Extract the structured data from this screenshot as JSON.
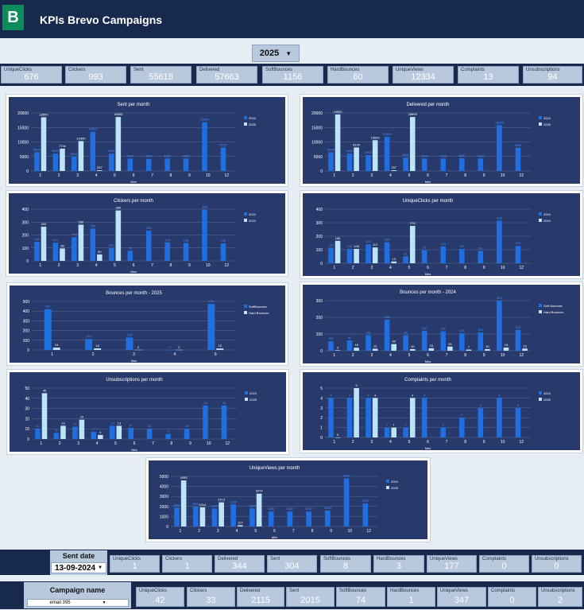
{
  "app": {
    "title": "KPIs Brevo Campaigns",
    "logo_letter": "B"
  },
  "year_filter": {
    "value": "2025"
  },
  "kpis_top": [
    {
      "label": "UniqueClicks",
      "value": "676"
    },
    {
      "label": "Clickers",
      "value": "993"
    },
    {
      "label": "Sent",
      "value": "55618"
    },
    {
      "label": "Delivered",
      "value": "57663"
    },
    {
      "label": "SoftBounces",
      "value": "1156"
    },
    {
      "label": "HardBounces",
      "value": "60"
    },
    {
      "label": "UniqueViews",
      "value": "12334"
    },
    {
      "label": "Complaints",
      "value": "13"
    },
    {
      "label": "Unsubscriptions",
      "value": "94"
    }
  ],
  "sent_date": {
    "label": "Sent date",
    "value": "13-09-2024"
  },
  "kpis_date": [
    {
      "label": "UniqueClicks",
      "value": "1"
    },
    {
      "label": "Clickers",
      "value": "1"
    },
    {
      "label": "Delivered",
      "value": "344"
    },
    {
      "label": "Sent",
      "value": "304"
    },
    {
      "label": "SoftBounces",
      "value": "8"
    },
    {
      "label": "HardBounces",
      "value": "3"
    },
    {
      "label": "UniqueViews",
      "value": "177"
    },
    {
      "label": "Complaints",
      "value": "0"
    },
    {
      "label": "Unsubscriptions",
      "value": "0"
    }
  ],
  "campaign": {
    "label": "Campaign name",
    "value": "email 395"
  },
  "kpis_campaign": [
    {
      "label": "UniqueClicks",
      "value": "42"
    },
    {
      "label": "Clickers",
      "value": "33"
    },
    {
      "label": "Delivered",
      "value": "2115"
    },
    {
      "label": "Sent",
      "value": "2015"
    },
    {
      "label": "SoftBounces",
      "value": "74"
    },
    {
      "label": "HardBounces",
      "value": "1"
    },
    {
      "label": "UniqueViews",
      "value": "347"
    },
    {
      "label": "Complaints",
      "value": "0"
    },
    {
      "label": "Unsubscriptions",
      "value": "2"
    }
  ],
  "colors": {
    "s1": "#1f6fe0",
    "s2": "#bde3f8",
    "grid": "#5b6d96",
    "text": "#ffffff"
  },
  "chart_data": [
    {
      "id": "sent",
      "type": "bar",
      "title": "Sent per month",
      "xlabel": "Mes",
      "categories": [
        "1",
        "2",
        "3",
        "4",
        "5",
        "6",
        "7",
        "8",
        "9",
        "10",
        "12"
      ],
      "ylim": [
        0,
        20000
      ],
      "yticks": [
        0,
        5000,
        10000,
        15000,
        20000
      ],
      "series": [
        {
          "name": "2024",
          "values": [
            6500,
            6000,
            5000,
            13500,
            6000,
            4300,
            4200,
            4300,
            4300,
            16800,
            8100
          ]
        },
        {
          "name": "2025",
          "values": [
            18500,
            7700,
            10300,
            257,
            18600,
            null,
            null,
            null,
            null,
            null,
            null
          ]
        }
      ]
    },
    {
      "id": "delivered",
      "type": "bar",
      "title": "Delivered per month",
      "xlabel": "Mes",
      "categories": [
        "1",
        "2",
        "3",
        "4",
        "5",
        "6",
        "7",
        "8",
        "9",
        "10",
        "12"
      ],
      "ylim": [
        0,
        20000
      ],
      "yticks": [
        0,
        5000,
        10000,
        15000,
        20000
      ],
      "series": [
        {
          "name": "2024",
          "values": [
            6500,
            6000,
            5500,
            11800,
            4600,
            4300,
            4300,
            4400,
            4300,
            15800,
            8000
          ]
        },
        {
          "name": "2025",
          "values": [
            19500,
            8100,
            10600,
            257,
            18600,
            null,
            null,
            null,
            null,
            null,
            null
          ]
        }
      ]
    },
    {
      "id": "clickers",
      "type": "bar",
      "title": "Clickers per month",
      "xlabel": "Mes",
      "categories": [
        "1",
        "2",
        "3",
        "4",
        "5",
        "6",
        "7",
        "8",
        "9",
        "10",
        "12"
      ],
      "ylim": [
        0,
        400
      ],
      "yticks": [
        0,
        100,
        200,
        300,
        400
      ],
      "series": [
        {
          "name": "2024",
          "values": [
            148,
            141,
            184,
            250,
            101,
            78,
            233,
            143,
            138,
            396,
            135
          ]
        },
        {
          "name": "2024",
          "values": [
            264,
            96,
            280,
            50,
            390,
            null,
            null,
            null,
            null,
            null,
            null
          ]
        }
      ]
    },
    {
      "id": "uniqueclicks",
      "type": "bar",
      "title": "UniqueClicks per month",
      "xlabel": "Mes",
      "categories": [
        "1",
        "2",
        "3",
        "4",
        "5",
        "6",
        "7",
        "8",
        "9",
        "10",
        "12"
      ],
      "ylim": [
        0,
        400
      ],
      "yticks": [
        0,
        100,
        200,
        300,
        400
      ],
      "series": [
        {
          "name": "2024",
          "values": [
            115,
            106,
            140,
            155,
            51,
            96,
            125,
            105,
            90,
            315,
            128
          ]
        },
        {
          "name": "2024",
          "values": [
            166,
            106,
            117,
            13,
            276,
            null,
            null,
            null,
            null,
            null,
            null
          ]
        }
      ]
    },
    {
      "id": "bounces2025",
      "type": "bar",
      "title": "Bounces per month - 2025",
      "xlabel": "Mes",
      "categories": [
        "1",
        "2",
        "3",
        "4",
        "6"
      ],
      "ylim": [
        0,
        500
      ],
      "yticks": [
        0,
        100,
        200,
        300,
        400,
        500
      ],
      "series": [
        {
          "name": "SoftBounces",
          "values": [
            421,
            113,
            128,
            1,
            475
          ]
        },
        {
          "name": "Hard Bounces",
          "values": [
            24,
            16,
            2,
            2,
            15
          ]
        }
      ]
    },
    {
      "id": "bounces2024",
      "type": "bar",
      "title": "Bounces per month - 2024",
      "xlabel": "Mes",
      "categories": [
        "1",
        "2",
        "3",
        "4",
        "5",
        "6",
        "7",
        "8",
        "9",
        "10",
        "12"
      ],
      "ylim": [
        0,
        300
      ],
      "yticks": [
        0,
        100,
        200,
        300
      ],
      "series": [
        {
          "name": "Soft Bounces",
          "values": [
            56,
            62,
            93,
            186,
            93,
            120,
            116,
            105,
            110,
            300,
            125
          ]
        },
        {
          "name": "Hard Bounces",
          "values": [
            3,
            18,
            12,
            40,
            10,
            15,
            25,
            7,
            10,
            19,
            13
          ]
        }
      ]
    },
    {
      "id": "unsubs",
      "type": "bar",
      "title": "Unsubscriptions per month",
      "xlabel": "Mes",
      "categories": [
        "1",
        "2",
        "3",
        "4",
        "5",
        "6",
        "7",
        "8",
        "9",
        "10",
        "12"
      ],
      "ylim": [
        0,
        50
      ],
      "yticks": [
        0,
        10,
        20,
        30,
        40,
        50
      ],
      "series": [
        {
          "name": "2024",
          "values": [
            10,
            6,
            12,
            7,
            13,
            11,
            10,
            5,
            10,
            33,
            33
          ]
        },
        {
          "name": "2025",
          "values": [
            45,
            13,
            19,
            4,
            13,
            null,
            null,
            null,
            null,
            null,
            null
          ]
        }
      ]
    },
    {
      "id": "complaints",
      "type": "bar",
      "title": "Complaints per month",
      "xlabel": "Mes",
      "categories": [
        "1",
        "2",
        "3",
        "4",
        "5",
        "6",
        "7",
        "8",
        "9",
        "10",
        "12"
      ],
      "ylim": [
        0,
        5
      ],
      "yticks": [
        0,
        1,
        2,
        3,
        4,
        5
      ],
      "series": [
        {
          "name": "2024",
          "values": [
            4,
            4,
            4,
            1,
            1,
            4,
            1,
            2,
            3,
            4,
            3
          ]
        },
        {
          "name": "2025",
          "values": [
            0,
            5,
            4,
            1,
            4,
            null,
            null,
            null,
            null,
            null,
            null
          ]
        }
      ]
    },
    {
      "id": "uniqueviews",
      "type": "bar",
      "title": "UniqueViews per month",
      "xlabel": "Mes",
      "categories": [
        "1",
        "2",
        "3",
        "4",
        "5",
        "6",
        "7",
        "8",
        "9",
        "10",
        "12"
      ],
      "ylim": [
        0,
        5000
      ],
      "yticks": [
        0,
        1000,
        2000,
        3000,
        4000,
        5000
      ],
      "series": [
        {
          "name": "2024",
          "values": [
            1882,
            2000,
            1800,
            2200,
            1800,
            1500,
            1500,
            1500,
            1600,
            4800,
            2300
          ]
        },
        {
          "name": "2025",
          "values": [
            4595,
            1914,
            2413,
            127,
            3274,
            null,
            null,
            null,
            null,
            null,
            null
          ]
        }
      ]
    }
  ]
}
